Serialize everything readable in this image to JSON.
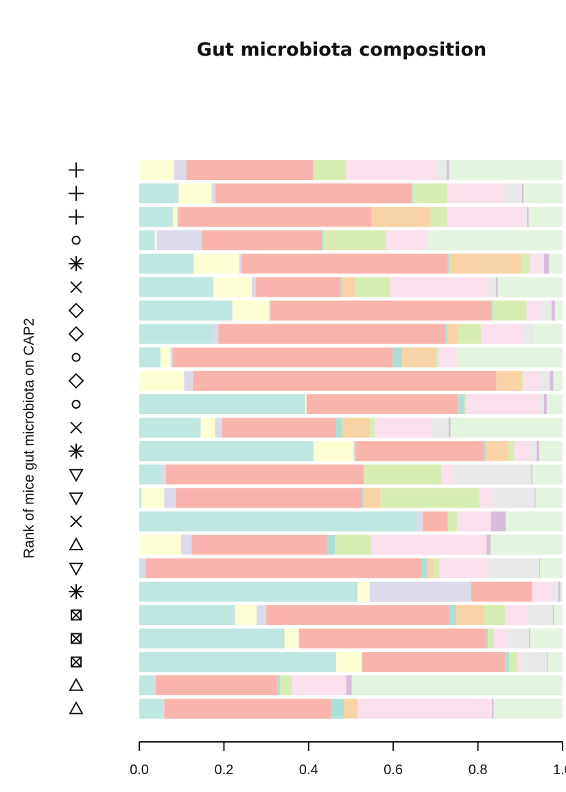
{
  "chart_data": {
    "type": "bar",
    "orientation": "horizontal",
    "stacked": true,
    "title": "Gut microbiota composition",
    "xlabel": "",
    "ylabel": "Rank of mice gut microbiota on CAP2",
    "xlim": [
      0,
      1
    ],
    "xticks": [
      "0.0",
      "0.2",
      "0.4",
      "0.6",
      "0.8",
      "1.0"
    ],
    "grid": false,
    "legend": "none",
    "palette": [
      "#bfe6e0",
      "#fefed4",
      "#dcdaea",
      "#f9b5ad",
      "#ade0d5",
      "#f8d3a5",
      "#d7ecb3",
      "#f9e0ec",
      "#e8e8e8",
      "#d8bcdc",
      "#e3f4df"
    ],
    "marker_types": [
      "plus",
      "plus",
      "plus",
      "circle",
      "asterisk",
      "cross",
      "diamond",
      "diamond",
      "circle",
      "diamond",
      "circle",
      "cross",
      "asterisk",
      "triangle-down",
      "triangle-down",
      "cross",
      "triangle-up",
      "triangle-down",
      "asterisk",
      "boxed-x",
      "boxed-x",
      "boxed-x",
      "triangle-up",
      "triangle-up"
    ],
    "rows": [
      [
        0.0,
        0.082,
        0.029,
        0.299,
        0.002,
        0.0,
        0.077,
        0.213,
        0.025,
        0.005,
        0.268
      ],
      [
        0.093,
        0.078,
        0.009,
        0.462,
        0.004,
        0.0,
        0.082,
        0.134,
        0.042,
        0.004,
        0.092
      ],
      [
        0.08,
        0.009,
        0.004,
        0.455,
        0.002,
        0.138,
        0.039,
        0.186,
        0.003,
        0.004,
        0.08
      ],
      [
        0.037,
        0.004,
        0.107,
        0.283,
        0.004,
        0.0,
        0.149,
        0.097,
        0.003,
        0.0,
        0.316
      ],
      [
        0.129,
        0.107,
        0.005,
        0.488,
        0.004,
        0.169,
        0.021,
        0.029,
        0.004,
        0.012,
        0.032
      ],
      [
        0.175,
        0.091,
        0.009,
        0.201,
        0.004,
        0.03,
        0.083,
        0.232,
        0.018,
        0.004,
        0.153
      ],
      [
        0.22,
        0.087,
        0.003,
        0.521,
        0.004,
        0.0,
        0.08,
        0.035,
        0.024,
        0.008,
        0.018
      ],
      [
        0.175,
        0.0,
        0.012,
        0.537,
        0.004,
        0.023,
        0.056,
        0.099,
        0.026,
        0.0,
        0.068
      ],
      [
        0.05,
        0.024,
        0.005,
        0.52,
        0.022,
        0.08,
        0.006,
        0.043,
        0.0,
        0.0,
        0.25
      ],
      [
        0.0,
        0.106,
        0.021,
        0.717,
        0.0,
        0.059,
        0.003,
        0.041,
        0.023,
        0.008,
        0.022
      ],
      [
        0.392,
        0.003,
        0.0,
        0.359,
        0.014,
        0.0,
        0.004,
        0.173,
        0.011,
        0.007,
        0.037
      ],
      [
        0.145,
        0.034,
        0.017,
        0.269,
        0.015,
        0.065,
        0.011,
        0.137,
        0.038,
        0.004,
        0.265
      ],
      [
        0.412,
        0.094,
        0.005,
        0.304,
        0.004,
        0.053,
        0.014,
        0.038,
        0.015,
        0.006,
        0.055
      ],
      [
        0.052,
        0.0,
        0.011,
        0.467,
        0.0,
        0.0,
        0.184,
        0.029,
        0.183,
        0.003,
        0.071
      ],
      [
        0.005,
        0.054,
        0.027,
        0.441,
        0.004,
        0.039,
        0.234,
        0.033,
        0.097,
        0.002,
        0.064
      ],
      [
        0.655,
        0.0,
        0.015,
        0.059,
        0.0,
        0.0,
        0.022,
        0.08,
        0.0,
        0.035,
        0.134
      ],
      [
        0.0,
        0.099,
        0.025,
        0.319,
        0.019,
        0.0,
        0.085,
        0.274,
        0.0,
        0.009,
        0.17
      ],
      [
        0.004,
        0.0,
        0.01,
        0.652,
        0.013,
        0.016,
        0.014,
        0.115,
        0.121,
        0.002,
        0.053
      ],
      [
        0.516,
        0.028,
        0.24,
        0.144,
        0.0,
        0.0,
        0.0,
        0.047,
        0.015,
        0.005,
        0.005
      ],
      [
        0.226,
        0.051,
        0.023,
        0.434,
        0.015,
        0.066,
        0.049,
        0.053,
        0.06,
        0.002,
        0.021
      ],
      [
        0.343,
        0.034,
        0.0,
        0.443,
        0.004,
        0.0,
        0.014,
        0.03,
        0.053,
        0.003,
        0.076
      ],
      [
        0.465,
        0.061,
        0.0,
        0.339,
        0.009,
        0.0,
        0.02,
        0.011,
        0.058,
        0.002,
        0.035
      ],
      [
        0.035,
        0.0,
        0.004,
        0.287,
        0.007,
        0.0,
        0.027,
        0.129,
        0.0,
        0.013,
        0.498
      ],
      [
        0.057,
        0.0,
        0.002,
        0.396,
        0.029,
        0.032,
        0.0,
        0.317,
        0.0,
        0.004,
        0.163
      ]
    ]
  }
}
